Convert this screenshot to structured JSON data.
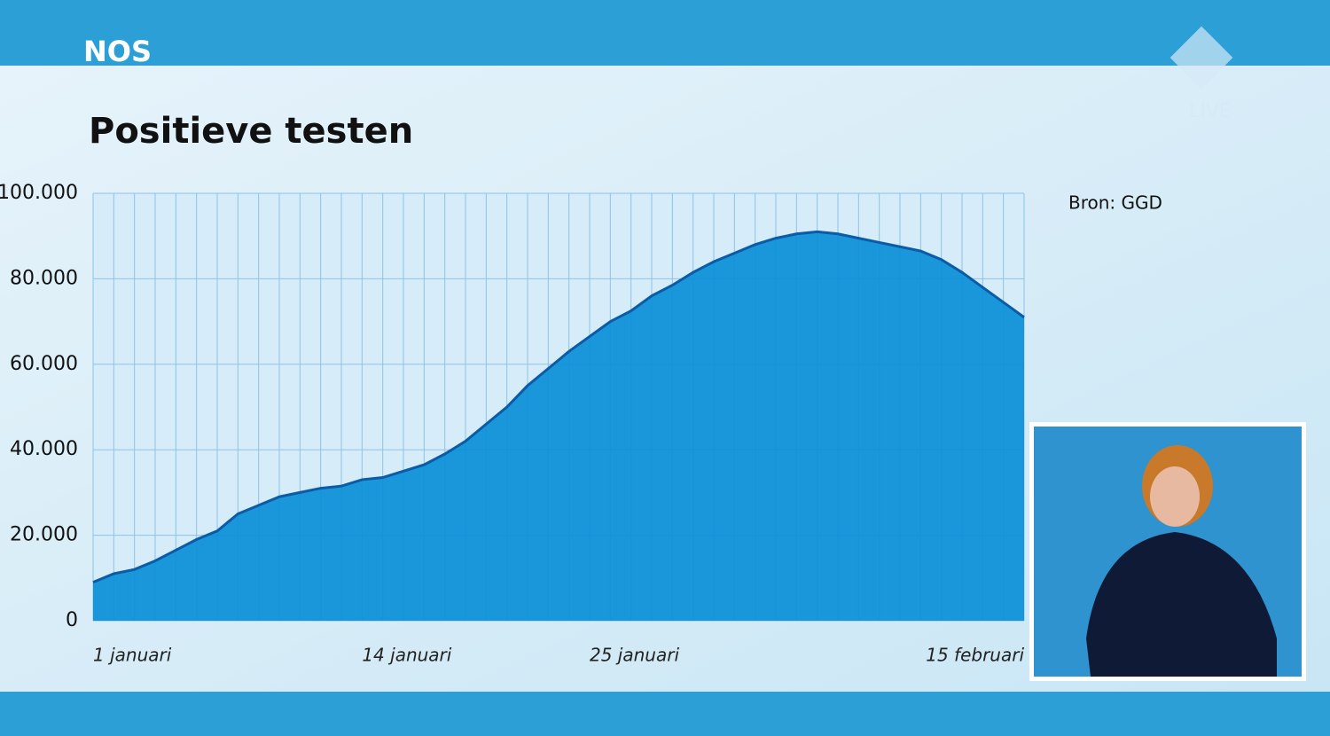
{
  "brand": "NOS",
  "live": "LIVE",
  "chart_data": {
    "type": "area",
    "title": "Positieve testen",
    "source": "Bron: GGD",
    "categories": [
      "1 januari",
      null,
      null,
      null,
      null,
      null,
      null,
      null,
      null,
      null,
      null,
      null,
      null,
      "14 januari",
      null,
      null,
      null,
      null,
      null,
      null,
      null,
      null,
      null,
      null,
      "25 januari",
      null,
      null,
      null,
      null,
      null,
      null,
      null,
      null,
      null,
      null,
      null,
      null,
      null,
      null,
      null,
      null,
      null,
      null,
      null,
      null,
      "15 februari"
    ],
    "values": [
      9000,
      11000,
      12000,
      14000,
      16500,
      19000,
      21000,
      25000,
      27000,
      29000,
      30000,
      31000,
      31500,
      33000,
      33500,
      35000,
      36500,
      39000,
      42000,
      46000,
      50000,
      55000,
      59000,
      63000,
      66500,
      70000,
      72500,
      76000,
      78500,
      81500,
      84000,
      86000,
      88000,
      89500,
      90500,
      91000,
      90500,
      89500,
      88500,
      87500,
      86500,
      84500,
      81500,
      78000,
      74500,
      71000
    ],
    "color": "#0a8fd8",
    "line_color": "#0b5ba6",
    "ylim": [
      0,
      100000
    ],
    "yticks": [
      0,
      {
        "value": 20000,
        "label": "20.000"
      },
      {
        "value": 40000,
        "label": "40.000"
      },
      {
        "value": 60000,
        "label": "60.000"
      },
      {
        "value": 80000,
        "label": "80.000"
      },
      {
        "value": 100000,
        "label": "100.000"
      }
    ],
    "grid": true
  }
}
